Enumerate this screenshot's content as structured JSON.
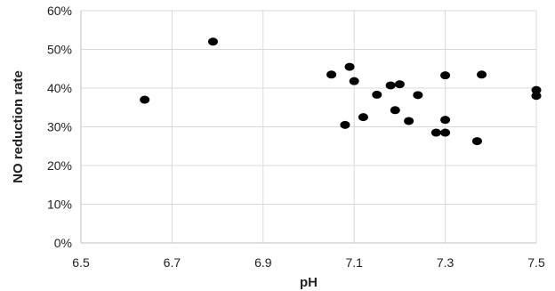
{
  "chart_data": {
    "type": "scatter",
    "title": "",
    "xlabel": "pH",
    "ylabel": "NO reduction rate",
    "xlim": [
      6.5,
      7.5
    ],
    "ylim": [
      0,
      0.6
    ],
    "x_ticks": [
      "6.5",
      "6.7",
      "6.9",
      "7.1",
      "7.3",
      "7.5"
    ],
    "y_ticks": [
      "0%",
      "10%",
      "20%",
      "30%",
      "40%",
      "50%",
      "60%"
    ],
    "grid": true,
    "legend": "none",
    "marker_color": "#000000",
    "series": [
      {
        "points": [
          {
            "x": 6.64,
            "y": 0.37
          },
          {
            "x": 6.79,
            "y": 0.52
          },
          {
            "x": 7.05,
            "y": 0.435
          },
          {
            "x": 7.08,
            "y": 0.305
          },
          {
            "x": 7.09,
            "y": 0.455
          },
          {
            "x": 7.1,
            "y": 0.418
          },
          {
            "x": 7.12,
            "y": 0.325
          },
          {
            "x": 7.15,
            "y": 0.383
          },
          {
            "x": 7.18,
            "y": 0.407
          },
          {
            "x": 7.19,
            "y": 0.343
          },
          {
            "x": 7.2,
            "y": 0.41
          },
          {
            "x": 7.22,
            "y": 0.315
          },
          {
            "x": 7.24,
            "y": 0.382
          },
          {
            "x": 7.28,
            "y": 0.285
          },
          {
            "x": 7.3,
            "y": 0.285
          },
          {
            "x": 7.3,
            "y": 0.318
          },
          {
            "x": 7.3,
            "y": 0.433
          },
          {
            "x": 7.37,
            "y": 0.263
          },
          {
            "x": 7.38,
            "y": 0.435
          },
          {
            "x": 7.5,
            "y": 0.395
          },
          {
            "x": 7.5,
            "y": 0.38
          }
        ]
      }
    ]
  }
}
